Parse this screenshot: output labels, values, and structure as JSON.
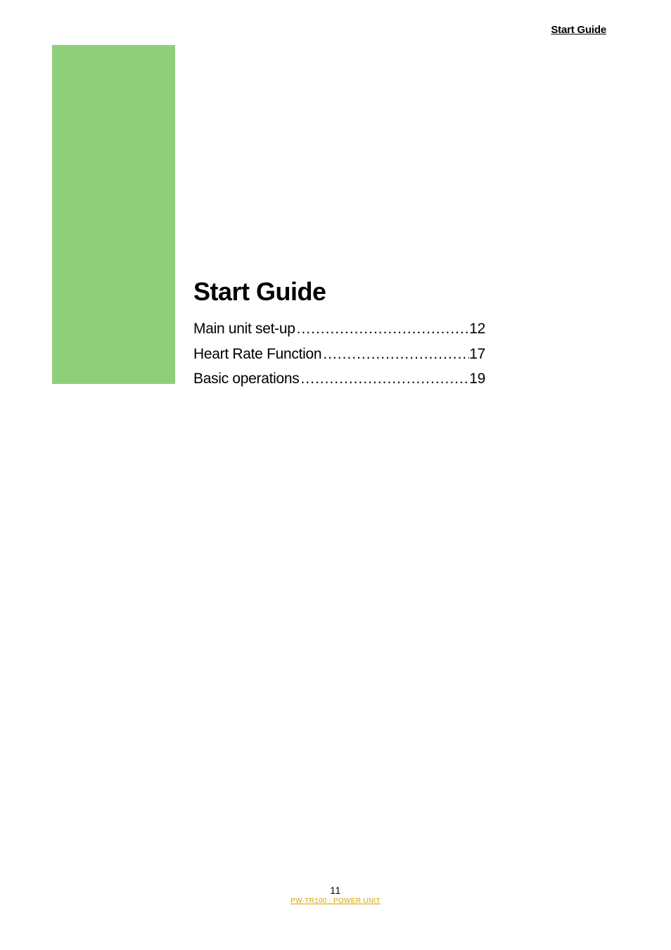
{
  "header": {
    "link_label": "Start Guide"
  },
  "colors": {
    "green_box": "#8fcf7c",
    "footer_link": "#d6a300"
  },
  "content": {
    "title": "Start Guide",
    "toc": [
      {
        "label": "Main unit set-up",
        "page": "12"
      },
      {
        "label": "Heart Rate Function",
        "page": "17"
      },
      {
        "label": "Basic operations",
        "page": "19"
      }
    ]
  },
  "footer": {
    "page_number": "11",
    "link_label": "PW-TR100 : POWER UNIT"
  }
}
